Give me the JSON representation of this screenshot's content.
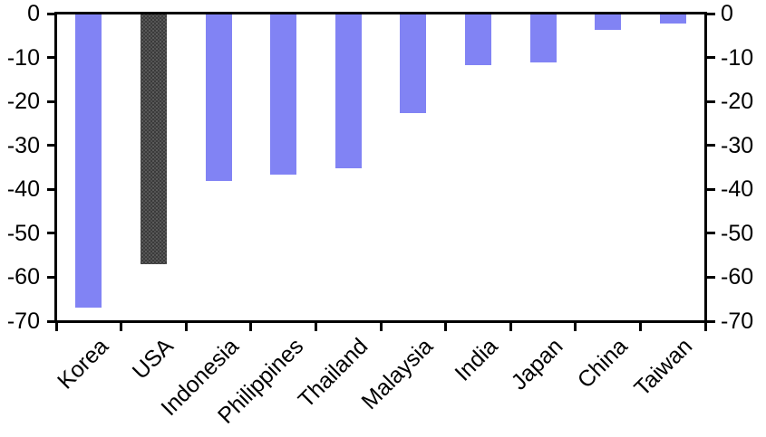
{
  "chart_data": {
    "type": "bar",
    "title": "",
    "xlabel": "",
    "ylabel": "",
    "categories": [
      "Korea",
      "USA",
      "Indonesia",
      "Philippines",
      "Thailand",
      "Malaysia",
      "India",
      "Japan",
      "China",
      "Taiwan"
    ],
    "values": [
      -67,
      -57,
      -38,
      -36.5,
      -35,
      -22.5,
      -11.5,
      -11,
      -3.5,
      -2
    ],
    "highlight_category": "USA",
    "ylim": [
      -70,
      0
    ],
    "yticks": [
      0,
      -10,
      -20,
      -30,
      -40,
      -50,
      -60,
      -70
    ],
    "y_axis_labels": "both-sides",
    "x_tick_position": "category-boundaries",
    "grid": false,
    "legend": false,
    "colors": {
      "bar": "#8183f4",
      "highlight_bar": "#3b3b3b",
      "axis": "#000000",
      "text": "#000000",
      "background": "#ffffff"
    }
  }
}
